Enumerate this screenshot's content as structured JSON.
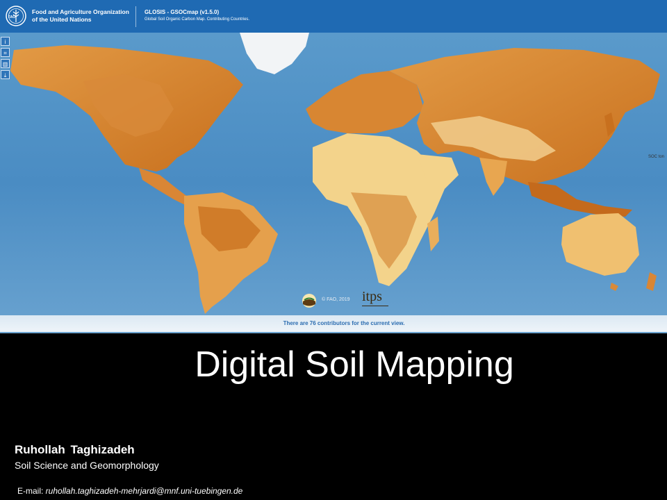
{
  "header": {
    "org_name": "Food and Agriculture Organization\nof the United Nations",
    "logo_text": "FAO",
    "app_title": "GLOSIS - GSOCmap (v1.5.0)",
    "app_subtitle": "Global Soil Organic Carbon Map. Contributing Countries."
  },
  "map": {
    "tools": [
      {
        "icon": "info-icon",
        "glyph": "i"
      },
      {
        "icon": "crop-icon",
        "glyph": "⌗"
      },
      {
        "icon": "chart-icon",
        "glyph": "▥"
      },
      {
        "icon": "download-icon",
        "glyph": "⤓"
      }
    ],
    "copyright": "© FAO, 2019",
    "itps_logo": "itps",
    "side_label": "SOC ton",
    "contributors_note": "There are 76 contributors for the current view.",
    "colors": {
      "ocean": "#4f8fc4",
      "land_light": "#f3d38b",
      "land_dark": "#c8701e",
      "ice": "#f2f4f6",
      "header": "#1f6ab3"
    }
  },
  "slide": {
    "title": "Digital Soil Mapping",
    "author": "Ruhollah Taghizadeh",
    "department": "Soil Science and Geomorphology",
    "email_label": "E-mail: ",
    "email": "ruhollah.taghizadeh-mehrjardi@mnf.uni-tuebingen.de"
  }
}
